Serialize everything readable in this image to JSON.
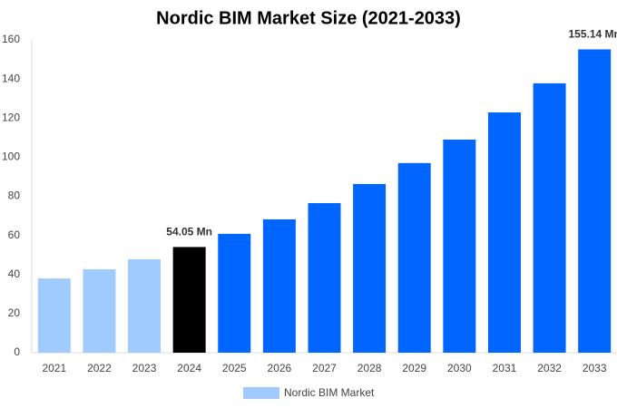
{
  "chart_data": {
    "type": "bar",
    "title": "Nordic BIM Market Size (2021-2033)",
    "categories": [
      "2021",
      "2022",
      "2023",
      "2024",
      "2025",
      "2026",
      "2027",
      "2028",
      "2029",
      "2030",
      "2031",
      "2032",
      "2033"
    ],
    "series": [
      {
        "name": "Nordic BIM Market",
        "color": "#a0cbff",
        "colors": [
          "#a0cbff",
          "#a0cbff",
          "#a0cbff",
          "#000000",
          "#0066ff",
          "#0066ff",
          "#0066ff",
          "#0066ff",
          "#0066ff",
          "#0066ff",
          "#0066ff",
          "#0066ff",
          "#0066ff"
        ],
        "values": [
          38,
          42.7,
          47.8,
          54.05,
          60.8,
          68.2,
          76.5,
          86.3,
          97,
          109,
          122.9,
          137.8,
          155.14
        ],
        "value_labels": [
          null,
          null,
          null,
          "54.05 Mn",
          null,
          null,
          null,
          null,
          null,
          null,
          null,
          null,
          "155.14 Mn"
        ]
      }
    ],
    "ylim": [
      0,
      160
    ],
    "yticks": [
      0,
      20,
      40,
      60,
      80,
      100,
      120,
      140,
      160
    ],
    "grid": false,
    "legend": "bottom"
  }
}
